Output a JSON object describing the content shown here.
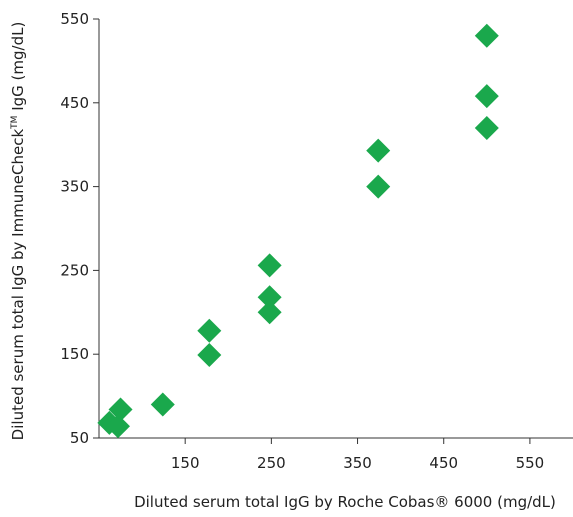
{
  "chart_data": {
    "type": "scatter",
    "title": "",
    "xlabel": "Diluted serum total IgG by Roche Cobas® 6000 (mg/dL)",
    "ylabel_pre": "Diluted serum total IgG by ImmuneCheck",
    "ylabel_sup": "TM",
    "ylabel_post": " IgG (mg/dL)",
    "xlim": [
      50,
      600
    ],
    "ylim": [
      50,
      550
    ],
    "xticks": [
      150,
      250,
      350,
      450,
      550
    ],
    "yticks": [
      50,
      150,
      250,
      350,
      450,
      550
    ],
    "grid": false,
    "marker": "diamond",
    "marker_color": "#1aa84c",
    "series": [
      {
        "x": [
          62,
          72,
          75,
          124,
          178,
          178,
          248,
          248,
          248,
          374,
          374,
          500,
          500,
          500
        ],
        "y": [
          68,
          64,
          84,
          90,
          149,
          178,
          200,
          218,
          256,
          350,
          393,
          420,
          458,
          530
        ]
      }
    ]
  }
}
